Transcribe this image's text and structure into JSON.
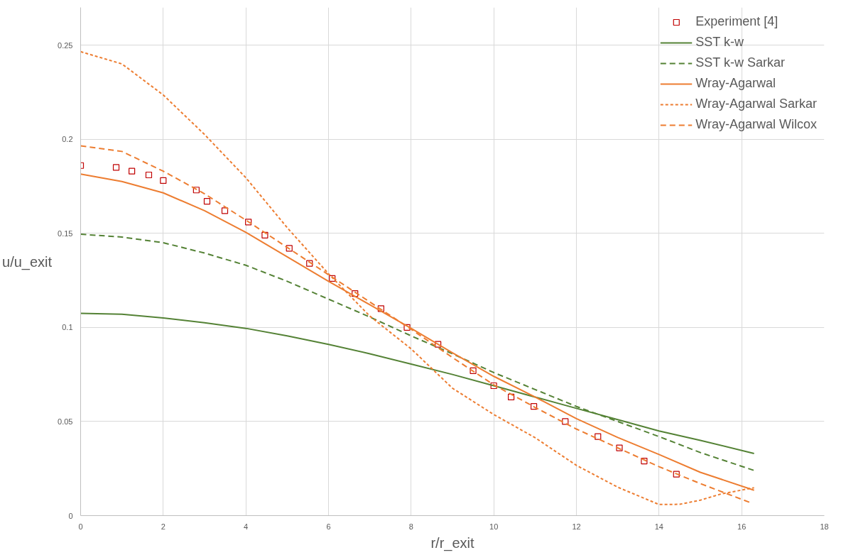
{
  "chart_data": {
    "type": "line",
    "xlabel": "r/r_exit",
    "ylabel": "u/u_exit",
    "xlim": [
      0,
      18
    ],
    "xticks": [
      0,
      2,
      4,
      6,
      8,
      10,
      12,
      14,
      16,
      18
    ],
    "ylim": [
      0,
      0.27
    ],
    "yticks": [
      0,
      0.05,
      0.1,
      0.15,
      0.2,
      0.25
    ],
    "grid": true,
    "legend": "top right",
    "series": [
      {
        "name": "Experiment [4]",
        "type": "scatter",
        "marker": "square",
        "color": "#c00000",
        "x": [
          0,
          0.86,
          1.24,
          1.65,
          2.0,
          2.8,
          3.06,
          3.49,
          4.06,
          4.46,
          5.05,
          5.54,
          6.09,
          6.64,
          7.27,
          7.9,
          8.65,
          9.5,
          10.0,
          10.42,
          10.97,
          11.73,
          12.52,
          13.04,
          13.64,
          14.42
        ],
        "values": [
          0.186,
          0.185,
          0.183,
          0.181,
          0.178,
          0.173,
          0.167,
          0.162,
          0.156,
          0.149,
          0.142,
          0.134,
          0.126,
          0.118,
          0.11,
          0.1,
          0.091,
          0.077,
          0.069,
          0.063,
          0.058,
          0.05,
          0.042,
          0.036,
          0.029,
          0.022
        ]
      },
      {
        "name": "SST k-w",
        "line_style": "solid",
        "color": "#548235",
        "x": [
          0,
          1,
          2,
          3,
          4,
          5,
          6,
          7,
          8,
          9,
          10,
          11,
          12,
          13,
          14,
          15,
          16.3
        ],
        "values": [
          0.1075,
          0.107,
          0.105,
          0.1025,
          0.0995,
          0.0955,
          0.091,
          0.086,
          0.0805,
          0.075,
          0.069,
          0.063,
          0.057,
          0.051,
          0.045,
          0.04,
          0.033
        ]
      },
      {
        "name": "SST k-w Sarkar",
        "line_style": "dashed",
        "color": "#548235",
        "x": [
          0,
          1,
          2,
          3,
          4,
          5,
          6,
          7,
          8,
          9,
          10,
          11,
          12,
          13,
          14,
          15,
          16.3
        ],
        "values": [
          0.1495,
          0.148,
          0.145,
          0.1395,
          0.133,
          0.1245,
          0.115,
          0.1055,
          0.0955,
          0.086,
          0.076,
          0.067,
          0.058,
          0.05,
          0.042,
          0.0335,
          0.024
        ]
      },
      {
        "name": "Wray-Agarwal",
        "line_style": "solid",
        "color": "#ed7d31",
        "x": [
          0,
          1,
          2,
          3,
          4,
          5,
          6,
          7,
          8,
          9,
          10,
          11,
          12,
          13,
          14,
          15,
          16.3
        ],
        "values": [
          0.1815,
          0.1775,
          0.1715,
          0.162,
          0.1505,
          0.1375,
          0.1245,
          0.112,
          0.0995,
          0.0865,
          0.074,
          0.063,
          0.0515,
          0.0415,
          0.0325,
          0.023,
          0.0135
        ]
      },
      {
        "name": "Wray-Agarwal Sarkar",
        "line_style": "dotted",
        "color": "#ed7d31",
        "x": [
          0,
          1,
          2,
          3,
          4,
          5,
          6,
          7,
          8,
          9,
          10,
          11,
          12,
          13,
          14,
          14.5,
          15,
          15.5,
          16.3
        ],
        "values": [
          0.2465,
          0.24,
          0.2235,
          0.2025,
          0.1795,
          0.153,
          0.1285,
          0.106,
          0.0886,
          0.0677,
          0.0537,
          0.0414,
          0.0267,
          0.0151,
          0.0059,
          0.006,
          0.0082,
          0.0115,
          0.0148
        ]
      },
      {
        "name": "Wray-Agarwal Wilcox",
        "line_style": "dashed",
        "color": "#ed7d31",
        "x": [
          0,
          1,
          2,
          3,
          4,
          5,
          6,
          7,
          8,
          9,
          10,
          11,
          12,
          13,
          14,
          15,
          16.2
        ],
        "values": [
          0.1965,
          0.1935,
          0.183,
          0.171,
          0.157,
          0.1425,
          0.128,
          0.1135,
          0.099,
          0.084,
          0.0695,
          0.0575,
          0.046,
          0.036,
          0.026,
          0.017,
          0.007
        ]
      }
    ]
  }
}
